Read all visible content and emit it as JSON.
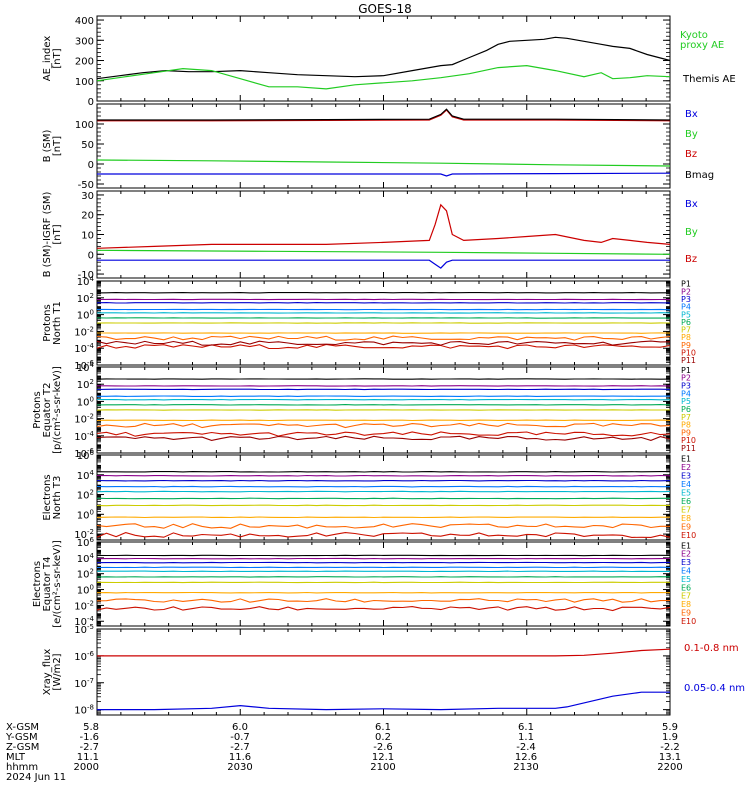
{
  "title": "GOES-18",
  "colors": {
    "black": "#000000",
    "red": "#cc0000",
    "green": "#22cc22",
    "blue": "#0000dd",
    "frame": "#000000"
  },
  "chart_data": {
    "type": "line",
    "title": "GOES-18",
    "x_ticks": [
      "2000",
      "2030",
      "2100",
      "2130",
      "2200"
    ],
    "date_label": "2024 Jun 11",
    "footer": {
      "rows": [
        {
          "label": "X-GSM",
          "values": [
            "5.8",
            "6.0",
            "6.1",
            "6.1",
            "5.9"
          ]
        },
        {
          "label": "Y-GSM",
          "values": [
            "-1.6",
            "-0.7",
            "0.2",
            "1.1",
            "1.9"
          ]
        },
        {
          "label": "Z-GSM",
          "values": [
            "-2.7",
            "-2.7",
            "-2.6",
            "-2.4",
            "-2.2"
          ]
        },
        {
          "label": "MLT",
          "values": [
            "11.1",
            "11.6",
            "12.1",
            "12.6",
            "13.1"
          ]
        },
        {
          "label": "hhmm",
          "values": [
            "2000",
            "2030",
            "2100",
            "2130",
            "2200"
          ]
        }
      ]
    },
    "panels": [
      {
        "ylabel": "AE_index\n[nT]",
        "scale": "linear",
        "ylim": [
          0,
          420
        ],
        "ticks": [
          "400",
          "300",
          "200",
          "100",
          "0"
        ],
        "tick_values": [
          400,
          300,
          200,
          100,
          0
        ],
        "legend": [
          {
            "text": "Kyoto\nproxy AE",
            "color": "#22cc22"
          },
          {
            "text": "Themis AE",
            "color": "#000000"
          }
        ],
        "series": [
          {
            "name": "Themis AE",
            "color": "#000000",
            "x": [
              0,
              0.04,
              0.08,
              0.12,
              0.16,
              0.2,
              0.25,
              0.3,
              0.35,
              0.4,
              0.45,
              0.5,
              0.55,
              0.6,
              0.62,
              0.65,
              0.68,
              0.7,
              0.72,
              0.75,
              0.78,
              0.8,
              0.82,
              0.85,
              0.88,
              0.9,
              0.93,
              0.96,
              1.0
            ],
            "y": [
              110,
              125,
              140,
              150,
              145,
              145,
              150,
              140,
              130,
              125,
              120,
              125,
              150,
              175,
              180,
              215,
              250,
              280,
              295,
              300,
              305,
              315,
              310,
              295,
              280,
              270,
              260,
              230,
              200
            ]
          },
          {
            "name": "Kyoto proxy AE",
            "color": "#22cc22",
            "x": [
              0,
              0.05,
              0.1,
              0.15,
              0.2,
              0.25,
              0.3,
              0.35,
              0.4,
              0.45,
              0.5,
              0.55,
              0.6,
              0.65,
              0.7,
              0.75,
              0.8,
              0.85,
              0.88,
              0.9,
              0.93,
              0.96,
              1.0
            ],
            "y": [
              100,
              120,
              140,
              160,
              150,
              110,
              70,
              70,
              60,
              80,
              90,
              100,
              115,
              135,
              165,
              175,
              150,
              120,
              140,
              110,
              115,
              125,
              120
            ]
          }
        ]
      },
      {
        "ylabel": "B (SM)\n[nT]",
        "scale": "linear",
        "ylim": [
          -60,
          150
        ],
        "ticks": [
          "100",
          "50",
          "0",
          "-50"
        ],
        "tick_values": [
          100,
          50,
          0,
          -50
        ],
        "legend": [
          {
            "text": "Bx",
            "color": "#0000dd"
          },
          {
            "text": "By",
            "color": "#22cc22"
          },
          {
            "text": "Bz",
            "color": "#cc0000"
          },
          {
            "text": "Bmag",
            "color": "#000000"
          }
        ],
        "series": [
          {
            "name": "Bz",
            "color": "#cc0000",
            "x": [
              0,
              0.2,
              0.4,
              0.58,
              0.6,
              0.61,
              0.62,
              0.64,
              0.8,
              1.0
            ],
            "y": [
              108,
              108,
              109,
              110,
              122,
              135,
              118,
              110,
              110,
              108
            ]
          },
          {
            "name": "Bmag",
            "color": "#000000",
            "x": [
              0,
              0.2,
              0.4,
              0.58,
              0.6,
              0.61,
              0.62,
              0.64,
              0.8,
              1.0
            ],
            "y": [
              110,
              110,
              111,
              112,
              124,
              137,
              120,
              112,
              112,
              110
            ]
          },
          {
            "name": "By",
            "color": "#22cc22",
            "x": [
              0,
              0.2,
              0.4,
              0.6,
              0.8,
              1.0
            ],
            "y": [
              10,
              8,
              5,
              2,
              -2,
              -5
            ]
          },
          {
            "name": "Bx",
            "color": "#0000dd",
            "x": [
              0,
              0.3,
              0.6,
              0.61,
              0.62,
              0.8,
              1.0
            ],
            "y": [
              -25,
              -25,
              -25,
              -30,
              -25,
              -24,
              -23
            ]
          }
        ]
      },
      {
        "ylabel": "B (SM)-IGRF (SM)\n[nT]",
        "scale": "linear",
        "ylim": [
          -12,
          32
        ],
        "ticks": [
          "30",
          "20",
          "10",
          "0",
          "-10"
        ],
        "tick_values": [
          30,
          20,
          10,
          0,
          -10
        ],
        "legend": [
          {
            "text": "Bx",
            "color": "#0000dd"
          },
          {
            "text": "By",
            "color": "#22cc22"
          },
          {
            "text": "Bz",
            "color": "#cc0000"
          }
        ],
        "series": [
          {
            "name": "Bz",
            "color": "#cc0000",
            "x": [
              0,
              0.1,
              0.2,
              0.3,
              0.4,
              0.5,
              0.58,
              0.59,
              0.6,
              0.61,
              0.62,
              0.64,
              0.7,
              0.75,
              0.8,
              0.85,
              0.88,
              0.9,
              0.93,
              0.96,
              1.0
            ],
            "y": [
              3,
              4,
              5,
              5,
              5,
              6,
              7,
              15,
              25,
              22,
              10,
              7,
              8,
              9,
              10,
              7,
              6,
              8,
              7,
              6,
              5
            ]
          },
          {
            "name": "By",
            "color": "#22cc22",
            "x": [
              0,
              0.3,
              0.6,
              0.8,
              1.0
            ],
            "y": [
              2,
              1.5,
              1,
              0.5,
              0
            ]
          },
          {
            "name": "Bx",
            "color": "#0000dd",
            "x": [
              0,
              0.3,
              0.58,
              0.59,
              0.6,
              0.61,
              0.62,
              0.8,
              1.0
            ],
            "y": [
              -3,
              -3,
              -3,
              -5,
              -7,
              -4,
              -3,
              -3,
              -3
            ]
          }
        ]
      },
      {
        "ylabel": "Protons\nNorth T1",
        "scale": "log",
        "ylim": [
          -6,
          4
        ],
        "ticks": [
          "10^4",
          "10^2",
          "10^0",
          "10^-2",
          "10^-4",
          "10^-6"
        ],
        "tick_values": [
          4,
          2,
          0,
          -2,
          -4,
          -6
        ],
        "channels": [
          "P1",
          "P2",
          "P3",
          "P4",
          "P5",
          "P6",
          "P7",
          "P8",
          "P9",
          "P10",
          "P11"
        ],
        "levels": [
          2.6,
          1.8,
          1.4,
          0.6,
          0.2,
          -0.4,
          -1.0,
          -2.2,
          -2.8,
          -3.8,
          -3.4
        ],
        "noisy_from": 8
      },
      {
        "ylabel": "Protons\nEquator T2\n[p/(cm²-s-sr-keV)]",
        "scale": "log",
        "ylim": [
          -6,
          4
        ],
        "ticks": [
          "10^4",
          "10^2",
          "10^0",
          "10^-2",
          "10^-4",
          "10^-6"
        ],
        "tick_values": [
          4,
          2,
          0,
          -2,
          -4,
          -6
        ],
        "channels": [
          "P1",
          "P2",
          "P3",
          "P4",
          "P5",
          "P6",
          "P7",
          "P8",
          "P9",
          "P10",
          "P11"
        ],
        "levels": [
          2.6,
          1.8,
          1.4,
          0.6,
          0.2,
          -0.4,
          -1.0,
          -2.2,
          -2.8,
          -3.8,
          -4.3
        ],
        "noisy_from": 8
      },
      {
        "ylabel": "Electrons\nNorth T3",
        "scale": "log",
        "ylim": [
          -2.6,
          6
        ],
        "ticks": [
          "10^6",
          "10^4",
          "10^2",
          "10^0",
          "10^-2"
        ],
        "tick_values": [
          6,
          4,
          2,
          0,
          -2
        ],
        "channels": [
          "E1",
          "E2",
          "E3",
          "E4",
          "E5",
          "E6",
          "E7",
          "E8",
          "E9",
          "E10"
        ],
        "levels": [
          4.3,
          3.9,
          3.4,
          2.8,
          2.3,
          1.6,
          0.9,
          -0.3,
          -1.2,
          -2.1
        ],
        "noisy_from": 8
      },
      {
        "ylabel": "Electrons\nEquator T4\n[e/(cm²-s-sr-keV)]",
        "scale": "log",
        "ylim": [
          -4.6,
          6
        ],
        "ticks": [
          "10^6",
          "10^4",
          "10^2",
          "10^0",
          "10^-2",
          "10^-4"
        ],
        "tick_values": [
          6,
          4,
          2,
          0,
          -2,
          -4
        ],
        "channels": [
          "E1",
          "E2",
          "E3",
          "E4",
          "E5",
          "E6",
          "E7",
          "E8",
          "E9",
          "E10"
        ],
        "levels": [
          4.3,
          3.9,
          3.4,
          2.8,
          2.3,
          1.6,
          0.9,
          -0.4,
          -1.4,
          -2.4
        ],
        "noisy_from": 8
      },
      {
        "ylabel": "Xray_flux\n[W/m2]",
        "scale": "log",
        "ylim": [
          -8.2,
          -5
        ],
        "ticks": [
          "10^-5",
          "10^-6",
          "10^-7",
          "10^-8"
        ],
        "tick_values": [
          -5,
          -6,
          -7,
          -8
        ],
        "legend": [
          {
            "text": "0.1-0.8 nm",
            "color": "#cc0000"
          },
          {
            "text": "0.05-0.4 nm",
            "color": "#0000dd"
          }
        ],
        "series": [
          {
            "name": "0.1-0.8 nm",
            "color": "#cc0000",
            "x": [
              0,
              0.2,
              0.4,
              0.6,
              0.8,
              0.85,
              0.9,
              0.95,
              1.0
            ],
            "y": [
              -6.0,
              -6.0,
              -6.0,
              -6.0,
              -6.0,
              -5.98,
              -5.9,
              -5.8,
              -5.75
            ]
          },
          {
            "name": "0.05-0.4 nm",
            "color": "#0000dd",
            "x": [
              0,
              0.1,
              0.2,
              0.25,
              0.3,
              0.4,
              0.5,
              0.6,
              0.7,
              0.8,
              0.82,
              0.86,
              0.9,
              0.95,
              1.0
            ],
            "y": [
              -8.0,
              -8.0,
              -7.95,
              -7.85,
              -7.95,
              -8.0,
              -7.97,
              -8.0,
              -7.95,
              -7.95,
              -7.9,
              -7.7,
              -7.5,
              -7.35,
              -7.35
            ]
          }
        ]
      }
    ]
  }
}
